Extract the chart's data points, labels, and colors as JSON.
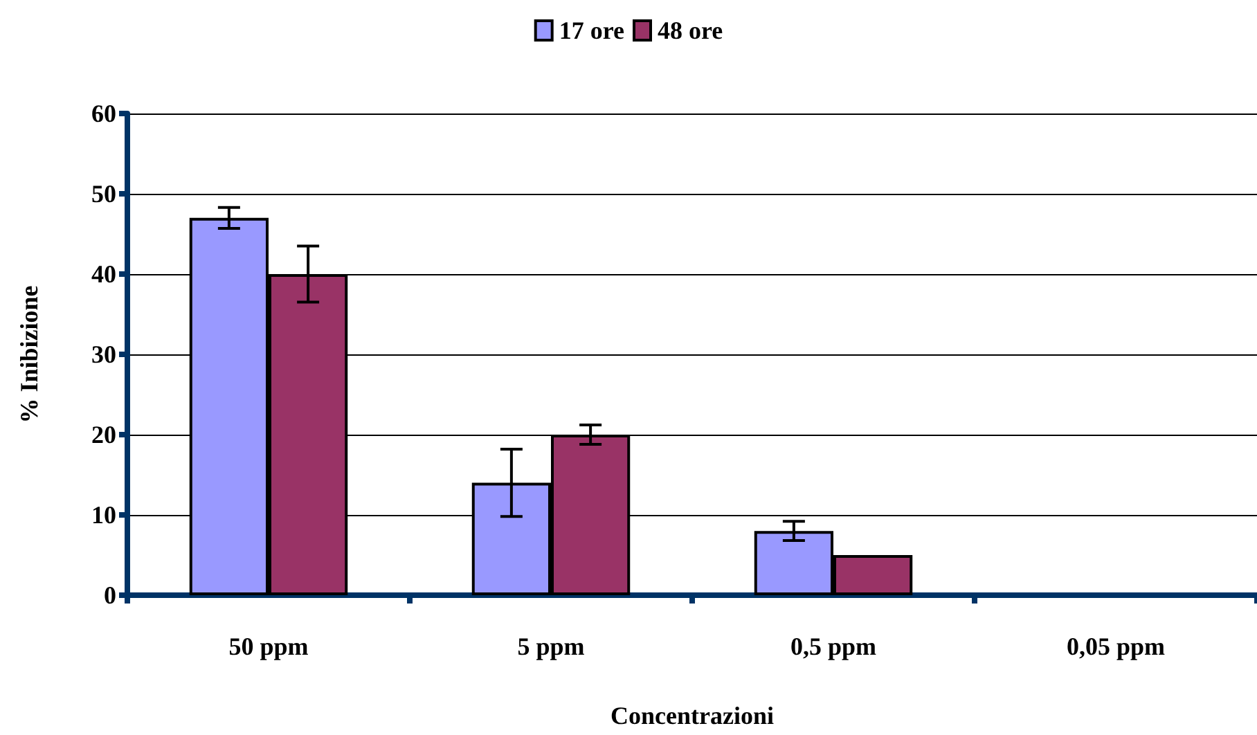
{
  "chart_data": {
    "type": "bar",
    "xlabel": "Concentrazioni",
    "ylabel": "% Inibizione",
    "categories": [
      "50 ppm",
      "5 ppm",
      "0,5 ppm",
      "0,05 ppm"
    ],
    "series": [
      {
        "name": "17 ore",
        "color": "#9999ff",
        "values": [
          47,
          14,
          8,
          0
        ],
        "errors": [
          1.3,
          4.2,
          1.2,
          null
        ]
      },
      {
        "name": "48 ore",
        "color": "#993366",
        "values": [
          40,
          20,
          5,
          0
        ],
        "errors": [
          3.5,
          1.2,
          null,
          null
        ]
      }
    ],
    "ylim": [
      0,
      60
    ],
    "yticks": [
      0,
      10,
      20,
      30,
      40,
      50,
      60
    ],
    "grid": "y",
    "legend": "top"
  }
}
